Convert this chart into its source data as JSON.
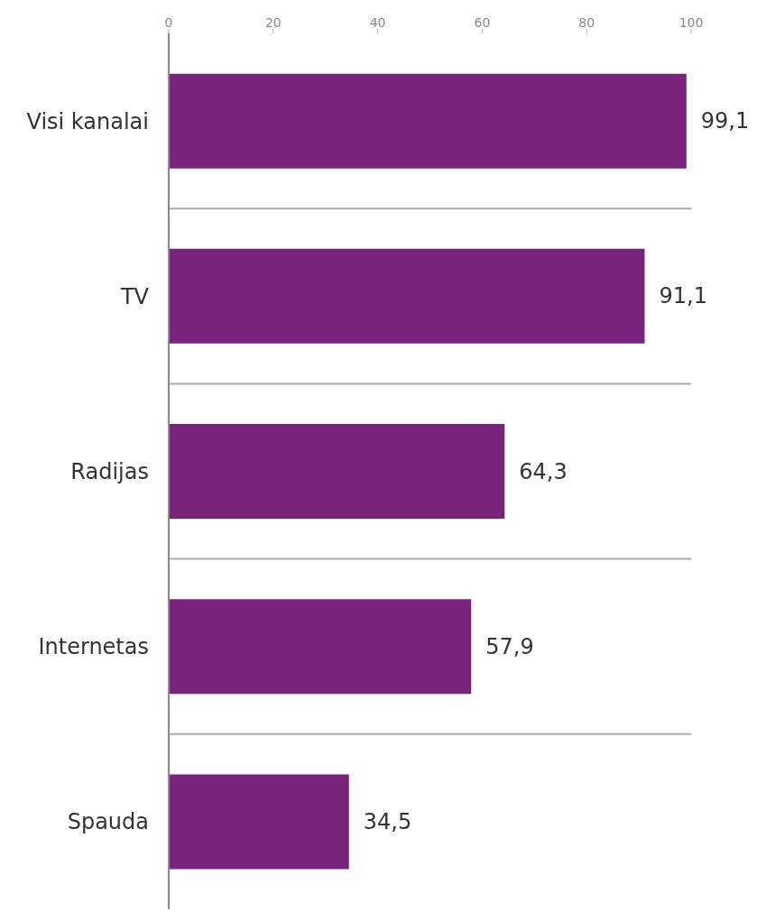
{
  "chart_data": {
    "type": "bar",
    "orientation": "horizontal",
    "categories": [
      "Visi kanalai",
      "TV",
      "Radijas",
      "Internetas",
      "Spauda"
    ],
    "values": [
      99.1,
      91.1,
      64.3,
      57.9,
      34.5
    ],
    "value_labels": [
      "99,1",
      "91,1",
      "64,3",
      "57,9",
      "34,5"
    ],
    "color": "#7a237c",
    "xlim": [
      0,
      100
    ],
    "xticks": [
      0,
      20,
      40,
      60,
      80,
      100
    ],
    "grid": "y"
  }
}
